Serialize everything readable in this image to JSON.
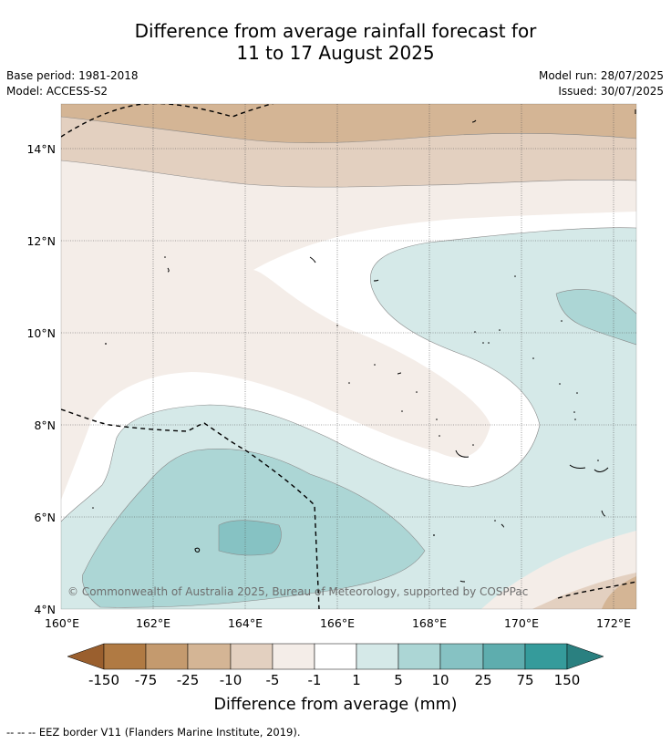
{
  "title": {
    "line1": "Difference from average rainfall forecast for",
    "line2": "11 to 17 August 2025"
  },
  "meta": {
    "base_period": "Base period: 1981-2018",
    "model": "Model: ACCESS-S2",
    "model_run": "Model run: 28/07/2025",
    "issued": "Issued: 30/07/2025"
  },
  "map": {
    "lat_labels": [
      "14°N",
      "12°N",
      "10°N",
      "8°N",
      "6°N",
      "4°N"
    ],
    "lon_labels": [
      "160°E",
      "162°E",
      "164°E",
      "166°E",
      "168°E",
      "170°E",
      "172°E"
    ],
    "copyright": "© Commonwealth of Australia 2025, Bureau of Meteorology, supported by COSPPac",
    "colors": {
      "dry_150": "#9a5f2e",
      "dry_75": "#b07a43",
      "dry_25": "#c49a6e",
      "dry_10": "#d4b595",
      "dry_5": "#e3d0c0",
      "dry_1": "#f4ede8",
      "neutral": "#ffffff",
      "wet_1": "#d5e9e8",
      "wet_5": "#acd6d5",
      "wet_10": "#86c2c3",
      "wet_25": "#5eadae",
      "wet_75": "#359b9b",
      "wet_150": "#2a8080"
    }
  },
  "colorbar": {
    "tick_labels": [
      "-150",
      "-75",
      "-25",
      "-10",
      "-5",
      "-1",
      "1",
      "5",
      "10",
      "25",
      "75",
      "150"
    ],
    "label": "Difference from average (mm)"
  },
  "footer": {
    "eez_legend": "-- -- -- EEZ border V11 (Flanders Marine Institute, 2019)."
  }
}
